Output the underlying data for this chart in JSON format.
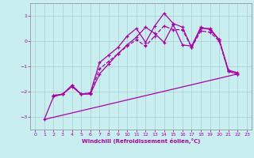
{
  "bg_color": "#c8eef0",
  "line_color": "#aa00aa",
  "grid_color": "#aacccc",
  "xlim": [
    -0.5,
    23.5
  ],
  "ylim": [
    -3.5,
    1.5
  ],
  "yticks": [
    1,
    0,
    -1,
    -2,
    -3
  ],
  "xticks": [
    0,
    1,
    2,
    3,
    4,
    5,
    6,
    7,
    8,
    9,
    10,
    11,
    12,
    13,
    14,
    15,
    16,
    17,
    18,
    19,
    20,
    21,
    22,
    23
  ],
  "xlabel": "Windchill (Refroidissement éolien,°C)",
  "line1_x": [
    1,
    2,
    3,
    4,
    5,
    6,
    7,
    8,
    9,
    10,
    11,
    12,
    13,
    14,
    15,
    16,
    17,
    18,
    19,
    20,
    21,
    22
  ],
  "line1_y": [
    -3.1,
    -2.2,
    -2.1,
    -1.8,
    -2.1,
    -2.1,
    -1.3,
    -0.9,
    -0.5,
    -0.15,
    0.15,
    0.55,
    0.3,
    -0.05,
    0.65,
    -0.15,
    -0.2,
    0.55,
    0.45,
    0.05,
    -1.2,
    -1.3
  ],
  "line2_x": [
    2,
    3,
    4,
    5,
    6,
    7,
    8,
    9,
    10,
    11,
    12,
    13,
    14,
    15,
    16,
    17,
    18,
    19,
    20,
    21,
    22
  ],
  "line2_y": [
    -2.15,
    -2.1,
    -1.75,
    -2.1,
    -2.05,
    -0.85,
    -0.55,
    -0.25,
    0.2,
    0.5,
    -0.05,
    0.6,
    1.1,
    0.7,
    0.55,
    -0.25,
    0.5,
    0.5,
    0.05,
    -1.15,
    -1.25
  ],
  "line3_x": [
    2,
    3,
    4,
    5,
    6,
    7,
    8,
    9,
    10,
    11,
    12,
    13,
    14,
    15,
    16,
    17,
    18,
    19,
    20,
    21,
    22
  ],
  "line3_y": [
    -2.15,
    -2.1,
    -1.75,
    -2.1,
    -2.05,
    -1.1,
    -0.8,
    -0.5,
    -0.2,
    0.05,
    -0.2,
    0.2,
    0.6,
    0.45,
    0.45,
    -0.25,
    0.4,
    0.35,
    0.0,
    -1.2,
    -1.3
  ],
  "line4_x": [
    1,
    22
  ],
  "line4_y": [
    -3.1,
    -1.3
  ],
  "figsize": [
    3.2,
    2.0
  ],
  "dpi": 100
}
